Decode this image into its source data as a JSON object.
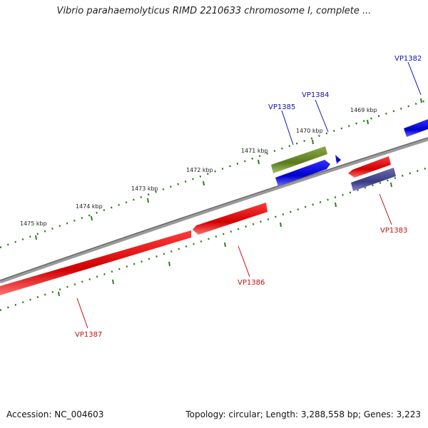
{
  "title": "Vibrio parahaemolyticus RIMD 2210633 chromosome I, complete ...",
  "footer": {
    "accession": "Accession: NC_004603",
    "topology": "Topology: circular; Length: 3,288,558 bp; Genes: 3,223"
  },
  "colors": {
    "backbone": "#888888",
    "tick": "#2e7d1e",
    "forward_cds": "#1010e0",
    "reverse_cds": "#e01010",
    "forward_label": "#1010b0",
    "reverse_label": "#c01010",
    "olive_feature": "#6b8a2a",
    "purple_feature": "#4a4a90"
  },
  "scale_labels": [
    "1469 kbp",
    "1470 kbp",
    "1471 kbp",
    "1472 kbp",
    "1473 kbp",
    "1474 kbp",
    "1475 kbp"
  ],
  "genes": [
    {
      "label": "VP1382",
      "strand": "forward"
    },
    {
      "label": "VP1383",
      "strand": "reverse"
    },
    {
      "label": "VP1384",
      "strand": "forward"
    },
    {
      "label": "VP1385",
      "strand": "forward"
    },
    {
      "label": "VP1386",
      "strand": "reverse"
    },
    {
      "label": "VP1387",
      "strand": "reverse"
    }
  ]
}
